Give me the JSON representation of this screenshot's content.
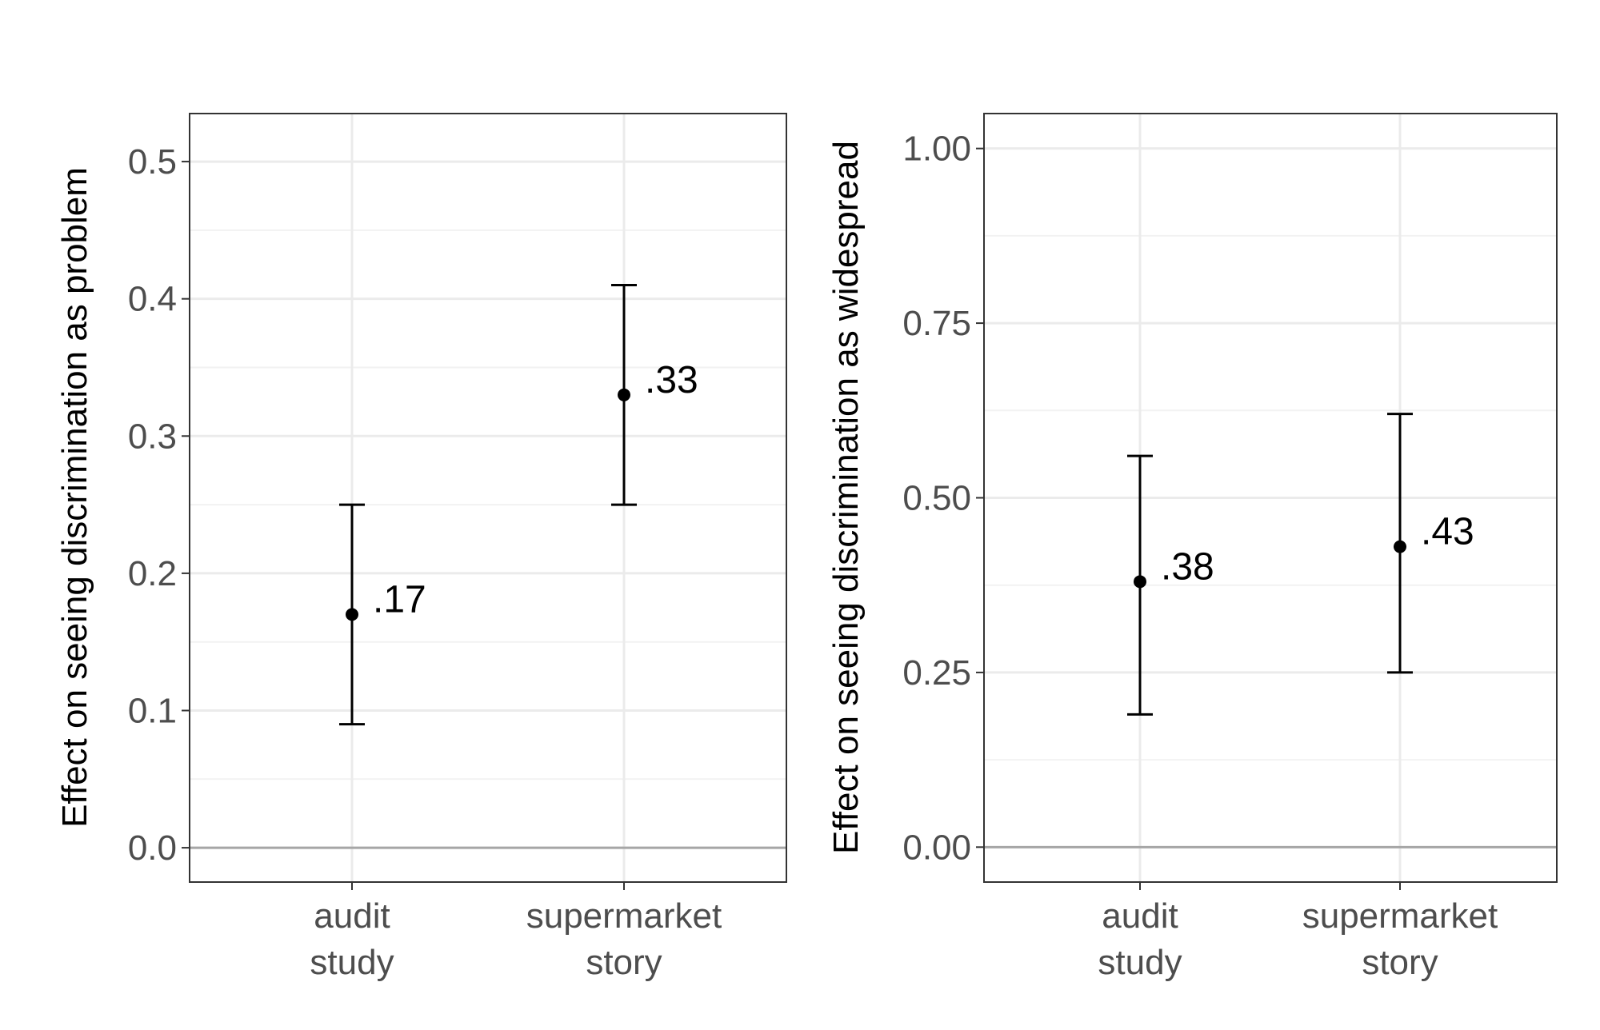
{
  "chart_data": [
    {
      "type": "errorbar",
      "ylabel": "Effect on seeing discrimination as problem",
      "ylim": [
        -0.025,
        0.535
      ],
      "yticks": [
        0.0,
        0.1,
        0.2,
        0.3,
        0.4,
        0.5
      ],
      "ytick_labels": [
        "0.0",
        "0.1",
        "0.2",
        "0.3",
        "0.4",
        "0.5"
      ],
      "categories": [
        {
          "lines": [
            "audit",
            "study"
          ]
        },
        {
          "lines": [
            "supermarket",
            "story"
          ]
        }
      ],
      "points": [
        {
          "category": "audit study",
          "value": 0.17,
          "lower": 0.09,
          "upper": 0.25,
          "label": ".17"
        },
        {
          "category": "supermarket story",
          "value": 0.33,
          "lower": 0.25,
          "upper": 0.41,
          "label": ".33"
        }
      ],
      "reference_line": 0.0,
      "grid": true
    },
    {
      "type": "errorbar",
      "ylabel": "Effect on seeing discrimination as widespread",
      "ylim": [
        -0.05,
        1.05
      ],
      "yticks": [
        0.0,
        0.25,
        0.5,
        0.75,
        1.0
      ],
      "ytick_labels": [
        "0.00",
        "0.25",
        "0.50",
        "0.75",
        "1.00"
      ],
      "categories": [
        {
          "lines": [
            "audit",
            "study"
          ]
        },
        {
          "lines": [
            "supermarket",
            "story"
          ]
        }
      ],
      "points": [
        {
          "category": "audit study",
          "value": 0.38,
          "lower": 0.19,
          "upper": 0.56,
          "label": ".38"
        },
        {
          "category": "supermarket story",
          "value": 0.43,
          "lower": 0.25,
          "upper": 0.62,
          "label": ".43"
        }
      ],
      "reference_line": 0.0,
      "grid": true
    }
  ],
  "colors": {
    "panel_border": "#333333",
    "grid_major": "#ebebeb",
    "grid_minor": "#f2f2f2",
    "reference_line": "#a6a6a6",
    "marks": "#000000",
    "tick_text": "#4d4d4d"
  }
}
